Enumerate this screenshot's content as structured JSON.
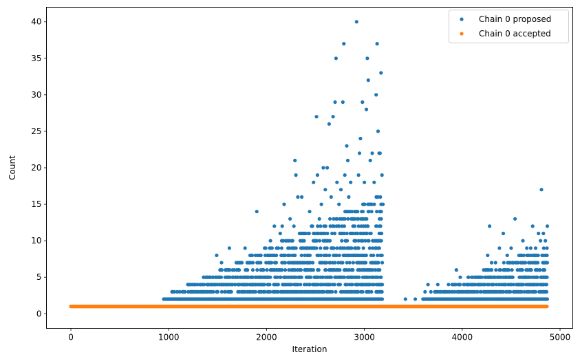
{
  "chart_data": {
    "type": "scatter",
    "title": "",
    "xlabel": "Iteration",
    "ylabel": "Count",
    "xlim": [
      -250,
      5130
    ],
    "ylim": [
      -2,
      42
    ],
    "xticks": [
      0,
      1000,
      2000,
      3000,
      4000,
      5000
    ],
    "yticks": [
      0,
      5,
      10,
      15,
      20,
      25,
      30,
      35,
      40
    ],
    "grid": false,
    "legend_position": "top-right",
    "series": [
      {
        "name": "Chain 0 proposed",
        "color": "#1f77b4",
        "points": [
          [
            950,
            2
          ],
          [
            1020,
            2
          ],
          [
            1060,
            2
          ],
          [
            1100,
            2
          ],
          [
            1120,
            2
          ],
          [
            1150,
            3
          ],
          [
            1170,
            2
          ],
          [
            1200,
            3
          ],
          [
            1220,
            2
          ],
          [
            1240,
            3
          ],
          [
            1260,
            2
          ],
          [
            1290,
            2
          ],
          [
            1320,
            2
          ],
          [
            1340,
            3
          ],
          [
            1360,
            5
          ],
          [
            1380,
            3
          ],
          [
            1400,
            4
          ],
          [
            1420,
            3
          ],
          [
            1440,
            2
          ],
          [
            1460,
            4
          ],
          [
            1480,
            5
          ],
          [
            1490,
            8
          ],
          [
            1500,
            3
          ],
          [
            1520,
            5
          ],
          [
            1540,
            7
          ],
          [
            1560,
            4
          ],
          [
            1580,
            6
          ],
          [
            1600,
            5
          ],
          [
            1620,
            9
          ],
          [
            1640,
            3
          ],
          [
            1660,
            5
          ],
          [
            1680,
            4
          ],
          [
            1700,
            5
          ],
          [
            1720,
            6
          ],
          [
            1740,
            5
          ],
          [
            1760,
            4
          ],
          [
            1780,
            9
          ],
          [
            1800,
            6
          ],
          [
            1820,
            7
          ],
          [
            1840,
            5
          ],
          [
            1860,
            6
          ],
          [
            1880,
            4
          ],
          [
            1900,
            14
          ],
          [
            1920,
            7
          ],
          [
            1940,
            8
          ],
          [
            1960,
            6
          ],
          [
            1980,
            9
          ],
          [
            2000,
            5
          ],
          [
            2020,
            7
          ],
          [
            2040,
            10
          ],
          [
            2060,
            8
          ],
          [
            2080,
            12
          ],
          [
            2100,
            6
          ],
          [
            2120,
            9
          ],
          [
            2140,
            11
          ],
          [
            2160,
            12
          ],
          [
            2180,
            15
          ],
          [
            2200,
            10
          ],
          [
            2220,
            8
          ],
          [
            2240,
            13
          ],
          [
            2260,
            9
          ],
          [
            2280,
            12
          ],
          [
            2290,
            21
          ],
          [
            2300,
            19
          ],
          [
            2320,
            16
          ],
          [
            2340,
            11
          ],
          [
            2360,
            16
          ],
          [
            2380,
            10
          ],
          [
            2400,
            11
          ],
          [
            2420,
            9
          ],
          [
            2440,
            14
          ],
          [
            2460,
            12
          ],
          [
            2480,
            18
          ],
          [
            2500,
            10
          ],
          [
            2510,
            27
          ],
          [
            2520,
            19
          ],
          [
            2540,
            13
          ],
          [
            2560,
            15
          ],
          [
            2580,
            20
          ],
          [
            2600,
            17
          ],
          [
            2620,
            20
          ],
          [
            2640,
            26
          ],
          [
            2660,
            16
          ],
          [
            2680,
            27
          ],
          [
            2700,
            29
          ],
          [
            2710,
            35
          ],
          [
            2720,
            18
          ],
          [
            2740,
            15
          ],
          [
            2760,
            17
          ],
          [
            2780,
            29
          ],
          [
            2790,
            37
          ],
          [
            2800,
            19
          ],
          [
            2820,
            23
          ],
          [
            2830,
            21
          ],
          [
            2840,
            16
          ],
          [
            2860,
            18
          ],
          [
            2880,
            13
          ],
          [
            2900,
            14
          ],
          [
            2920,
            40
          ],
          [
            2940,
            19
          ],
          [
            2950,
            22
          ],
          [
            2960,
            24
          ],
          [
            2980,
            29
          ],
          [
            3000,
            18
          ],
          [
            3020,
            28
          ],
          [
            3030,
            35
          ],
          [
            3040,
            32
          ],
          [
            3060,
            21
          ],
          [
            3080,
            22
          ],
          [
            3100,
            18
          ],
          [
            3120,
            30
          ],
          [
            3130,
            37
          ],
          [
            3140,
            25
          ],
          [
            3150,
            22
          ],
          [
            3160,
            22
          ],
          [
            3170,
            33
          ],
          [
            3180,
            19
          ],
          [
            3190,
            15
          ],
          [
            3420,
            2
          ],
          [
            3520,
            2
          ],
          [
            3600,
            2
          ],
          [
            3620,
            3
          ],
          [
            3650,
            4
          ],
          [
            3680,
            3
          ],
          [
            3720,
            3
          ],
          [
            3750,
            4
          ],
          [
            3780,
            3
          ],
          [
            3820,
            3
          ],
          [
            3860,
            4
          ],
          [
            3900,
            3
          ],
          [
            3940,
            6
          ],
          [
            3980,
            5
          ],
          [
            4020,
            4
          ],
          [
            4060,
            5
          ],
          [
            4100,
            4
          ],
          [
            4140,
            5
          ],
          [
            4180,
            4
          ],
          [
            4220,
            6
          ],
          [
            4260,
            8
          ],
          [
            4280,
            12
          ],
          [
            4300,
            7
          ],
          [
            4340,
            7
          ],
          [
            4380,
            9
          ],
          [
            4420,
            11
          ],
          [
            4460,
            8
          ],
          [
            4500,
            9
          ],
          [
            4540,
            13
          ],
          [
            4580,
            8
          ],
          [
            4620,
            10
          ],
          [
            4660,
            9
          ],
          [
            4700,
            9
          ],
          [
            4720,
            12
          ],
          [
            4750,
            9
          ],
          [
            4780,
            11
          ],
          [
            4800,
            10
          ],
          [
            4810,
            17
          ],
          [
            4830,
            11
          ],
          [
            4850,
            10
          ],
          [
            4870,
            12
          ]
        ]
      },
      {
        "name": "Chain 0 accepted",
        "color": "#ff7f0e",
        "points": [
          [
            0,
            1
          ],
          [
            4870,
            1
          ]
        ]
      }
    ]
  }
}
